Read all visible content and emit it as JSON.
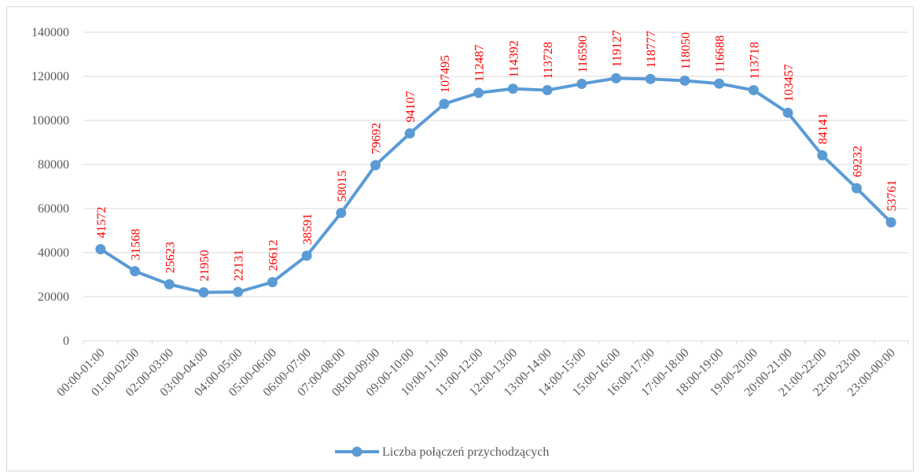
{
  "chart_data": {
    "type": "line",
    "categories": [
      "00:00-01:00",
      "01:00-02:00",
      "02:00-03:00",
      "03:00-04:00",
      "04:00-05:00",
      "05:00-06:00",
      "06:00-07:00",
      "07:00-08:00",
      "08:00-09:00",
      "09:00-10:00",
      "10:00-11:00",
      "11:00-12:00",
      "12:00-13:00",
      "13:00-14:00",
      "14:00-15:00",
      "15:00-16:00",
      "16:00-17:00",
      "17:00-18:00",
      "18:00-19:00",
      "19:00-20:00",
      "20:00-21:00",
      "21:00-22:00",
      "22:00-23:00",
      "23:00-00:00"
    ],
    "series": [
      {
        "name": "Liczba połączeń przychodzących",
        "color": "#5b9bd5",
        "values": [
          41572,
          31568,
          25623,
          21950,
          22131,
          26612,
          38591,
          58015,
          79692,
          94107,
          107495,
          112487,
          114392,
          113728,
          116590,
          119127,
          118777,
          118050,
          116688,
          113718,
          103457,
          84141,
          69232,
          53761
        ]
      }
    ],
    "data_label_color": "#ff0000",
    "ylim": [
      0,
      140000
    ],
    "yticks": [
      0,
      20000,
      40000,
      60000,
      80000,
      100000,
      120000,
      140000
    ],
    "grid": true,
    "legend": "bottom"
  }
}
